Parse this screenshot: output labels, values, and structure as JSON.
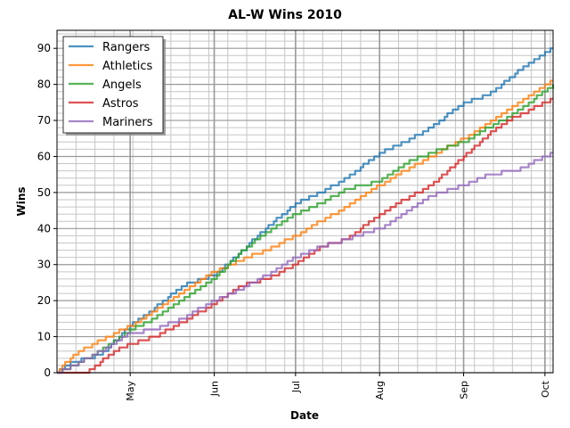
{
  "chart_data": {
    "type": "line",
    "title": "AL-W Wins 2010",
    "xlabel": "Date",
    "ylabel": "Wins",
    "ylim": [
      0,
      95
    ],
    "xlim": [
      "2010-04-04",
      "2010-10-04"
    ],
    "x_ticks": [
      {
        "date": "2010-05-01",
        "label": "May"
      },
      {
        "date": "2010-06-01",
        "label": "Jun"
      },
      {
        "date": "2010-07-01",
        "label": "Jul"
      },
      {
        "date": "2010-08-01",
        "label": "Aug"
      },
      {
        "date": "2010-09-01",
        "label": "Sep"
      },
      {
        "date": "2010-10-01",
        "label": "Oct"
      }
    ],
    "y_ticks": [
      0,
      10,
      20,
      30,
      40,
      50,
      60,
      70,
      80,
      90
    ],
    "grid": true,
    "legend_position": "top-left",
    "series": [
      {
        "name": "Rangers",
        "color": "#1f77b4",
        "points": [
          [
            "2010-04-04",
            0
          ],
          [
            "2010-04-10",
            3
          ],
          [
            "2010-04-20",
            5
          ],
          [
            "2010-05-01",
            13
          ],
          [
            "2010-05-10",
            18
          ],
          [
            "2010-05-20",
            24
          ],
          [
            "2010-06-01",
            27
          ],
          [
            "2010-06-10",
            33
          ],
          [
            "2010-06-20",
            40
          ],
          [
            "2010-07-01",
            47
          ],
          [
            "2010-07-10",
            50
          ],
          [
            "2010-07-20",
            54
          ],
          [
            "2010-08-01",
            61
          ],
          [
            "2010-08-10",
            64
          ],
          [
            "2010-08-20",
            68
          ],
          [
            "2010-09-01",
            75
          ],
          [
            "2010-09-10",
            77
          ],
          [
            "2010-09-20",
            83
          ],
          [
            "2010-10-04",
            90
          ]
        ]
      },
      {
        "name": "Athletics",
        "color": "#ff7f0e",
        "points": [
          [
            "2010-04-04",
            0
          ],
          [
            "2010-04-10",
            5
          ],
          [
            "2010-04-20",
            9
          ],
          [
            "2010-05-01",
            13
          ],
          [
            "2010-05-10",
            17
          ],
          [
            "2010-05-20",
            22
          ],
          [
            "2010-06-01",
            28
          ],
          [
            "2010-06-10",
            31
          ],
          [
            "2010-06-20",
            34
          ],
          [
            "2010-07-01",
            38
          ],
          [
            "2010-07-10",
            42
          ],
          [
            "2010-07-20",
            46
          ],
          [
            "2010-08-01",
            52
          ],
          [
            "2010-08-10",
            56
          ],
          [
            "2010-08-20",
            60
          ],
          [
            "2010-09-01",
            65
          ],
          [
            "2010-09-10",
            69
          ],
          [
            "2010-09-20",
            74
          ],
          [
            "2010-10-04",
            81
          ]
        ]
      },
      {
        "name": "Angels",
        "color": "#2ca02c",
        "points": [
          [
            "2010-04-04",
            0
          ],
          [
            "2010-04-10",
            2
          ],
          [
            "2010-04-20",
            6
          ],
          [
            "2010-05-01",
            12
          ],
          [
            "2010-05-10",
            15
          ],
          [
            "2010-05-20",
            20
          ],
          [
            "2010-06-01",
            26
          ],
          [
            "2010-06-10",
            33
          ],
          [
            "2010-06-20",
            39
          ],
          [
            "2010-07-01",
            44
          ],
          [
            "2010-07-10",
            47
          ],
          [
            "2010-07-20",
            51
          ],
          [
            "2010-08-01",
            53
          ],
          [
            "2010-08-10",
            58
          ],
          [
            "2010-08-20",
            61
          ],
          [
            "2010-09-01",
            64
          ],
          [
            "2010-09-10",
            68
          ],
          [
            "2010-09-20",
            72
          ],
          [
            "2010-10-04",
            80
          ]
        ]
      },
      {
        "name": "Astros",
        "color": "#d62728",
        "points": [
          [
            "2010-04-04",
            0
          ],
          [
            "2010-04-15",
            0
          ],
          [
            "2010-04-25",
            6
          ],
          [
            "2010-05-01",
            8
          ],
          [
            "2010-05-10",
            10
          ],
          [
            "2010-05-20",
            14
          ],
          [
            "2010-06-01",
            19
          ],
          [
            "2010-06-10",
            24
          ],
          [
            "2010-06-20",
            26
          ],
          [
            "2010-07-01",
            30
          ],
          [
            "2010-07-10",
            35
          ],
          [
            "2010-07-20",
            37
          ],
          [
            "2010-08-01",
            44
          ],
          [
            "2010-08-10",
            48
          ],
          [
            "2010-08-20",
            52
          ],
          [
            "2010-09-01",
            60
          ],
          [
            "2010-09-10",
            66
          ],
          [
            "2010-09-20",
            71
          ],
          [
            "2010-10-04",
            76
          ]
        ]
      },
      {
        "name": "Mariners",
        "color": "#9467bd",
        "points": [
          [
            "2010-04-04",
            0
          ],
          [
            "2010-04-10",
            2
          ],
          [
            "2010-04-20",
            6
          ],
          [
            "2010-05-01",
            11
          ],
          [
            "2010-05-10",
            12
          ],
          [
            "2010-05-20",
            15
          ],
          [
            "2010-06-01",
            20
          ],
          [
            "2010-06-10",
            23
          ],
          [
            "2010-06-20",
            27
          ],
          [
            "2010-07-01",
            32
          ],
          [
            "2010-07-10",
            35
          ],
          [
            "2010-07-20",
            37
          ],
          [
            "2010-08-01",
            40
          ],
          [
            "2010-08-10",
            44
          ],
          [
            "2010-08-20",
            49
          ],
          [
            "2010-09-01",
            52
          ],
          [
            "2010-09-10",
            55
          ],
          [
            "2010-09-20",
            56
          ],
          [
            "2010-10-04",
            61
          ]
        ]
      }
    ]
  }
}
